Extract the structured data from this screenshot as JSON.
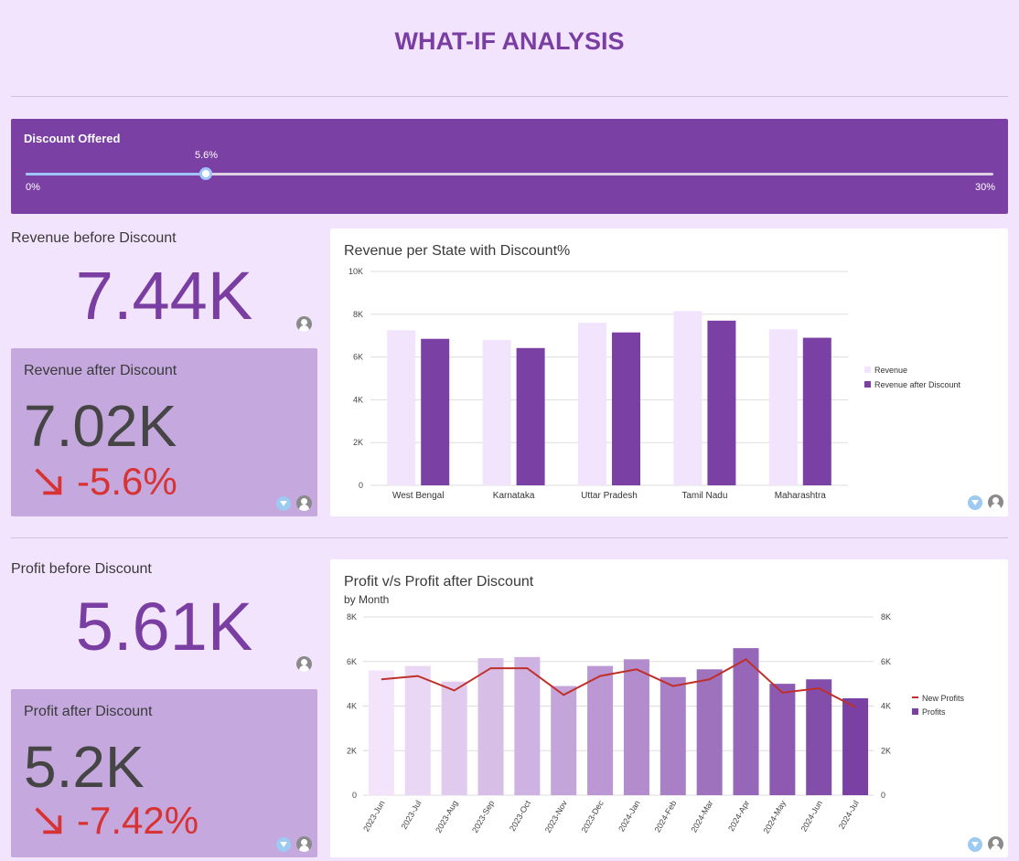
{
  "header": {
    "title": "WHAT-IF ANALYSIS"
  },
  "slider": {
    "label": "Discount Offered",
    "value": 5.6,
    "value_label": "5.6%",
    "min": 0,
    "max": 30,
    "min_label": "0%",
    "max_label": "30%"
  },
  "revenue": {
    "before_label": "Revenue before Discount",
    "before_value": "7.44K",
    "after_label": "Revenue after Discount",
    "after_value": "7.02K",
    "after_delta": "-5.6%"
  },
  "profit": {
    "before_label": "Profit before Discount",
    "before_value": "5.61K",
    "after_label": "Profit after Discount",
    "after_value": "5.2K",
    "after_delta": "-7.42%"
  },
  "colors": {
    "accent": "#7a3ea3",
    "negative": "#d83232",
    "bar_light": "#f2e4fc",
    "bar_dark": "#7a40a3",
    "line": "#c0302b"
  },
  "chart_data": [
    {
      "type": "bar",
      "title": "Revenue per State with Discount%",
      "categories": [
        "West Bengal",
        "Karnataka",
        "Uttar Pradesh",
        "Tamil Nadu",
        "Maharashtra"
      ],
      "series": [
        {
          "name": "Revenue",
          "values": [
            7250,
            6800,
            7600,
            8150,
            7300
          ]
        },
        {
          "name": "Revenue after Discount",
          "values": [
            6850,
            6420,
            7150,
            7700,
            6900
          ]
        }
      ],
      "ylim": [
        0,
        10000
      ],
      "yticks": [
        "0",
        "2K",
        "4K",
        "6K",
        "8K",
        "10K"
      ],
      "legend": "right",
      "grid": true
    },
    {
      "type": "bar",
      "title": "Profit v/s Profit after Discount",
      "subtitle": "by Month",
      "categories": [
        "2023-Jun",
        "2023-Jul",
        "2023-Aug",
        "2023-Sep",
        "2023-Oct",
        "2023-Nov",
        "2023-Dec",
        "2024-Jan",
        "2024-Feb",
        "2024-Mar",
        "2024-Apr",
        "2024-May",
        "2024-Jun",
        "2024-Jul"
      ],
      "series": [
        {
          "name": "Profits",
          "type": "bar",
          "values": [
            5600,
            5800,
            5100,
            6150,
            6200,
            4900,
            5800,
            6100,
            5300,
            5650,
            6600,
            5000,
            5200,
            4350
          ]
        },
        {
          "name": "New Profits",
          "type": "line",
          "values": [
            5200,
            5350,
            4700,
            5700,
            5700,
            4500,
            5350,
            5650,
            4900,
            5200,
            6100,
            4600,
            4800,
            3950
          ]
        }
      ],
      "ylim": [
        0,
        8000
      ],
      "yticks": [
        "0",
        "2K",
        "4K",
        "6K",
        "8K"
      ],
      "legend": "right",
      "grid": true
    }
  ]
}
